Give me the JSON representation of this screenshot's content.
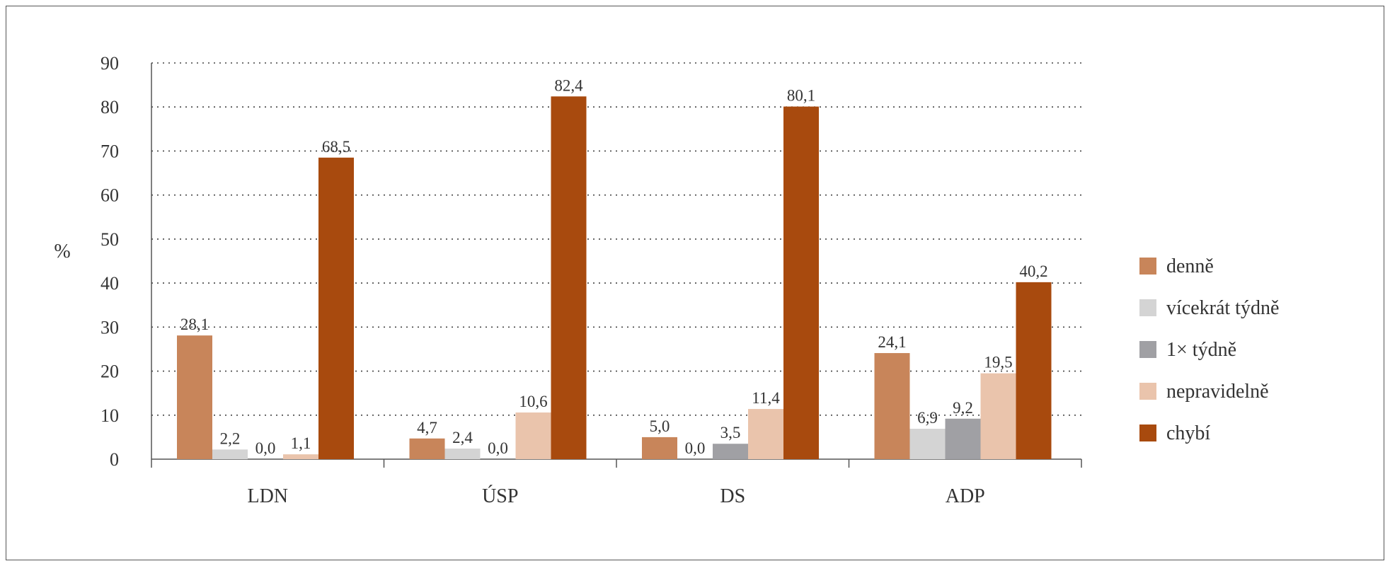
{
  "chart_data": {
    "type": "bar",
    "ylabel": "%",
    "ylim": [
      0,
      90
    ],
    "yticks": [
      0,
      10,
      20,
      30,
      40,
      50,
      60,
      70,
      80,
      90
    ],
    "grid": "dotted-horizontal",
    "legend_position": "right",
    "categories": [
      "LDN",
      "ÚSP",
      "DS",
      "ADP"
    ],
    "series": [
      {
        "name": "denně",
        "color": "#c8855a",
        "values": [
          28.1,
          4.7,
          5.0,
          24.1
        ],
        "labels": [
          "28,1",
          "4,7",
          "5,0",
          "24,1"
        ]
      },
      {
        "name": "vícekrát týdně",
        "color": "#d4d4d4",
        "values": [
          2.2,
          2.4,
          0.0,
          6.9
        ],
        "labels": [
          "2,2",
          "2,4",
          "0,0",
          "6,9"
        ]
      },
      {
        "name": "1× týdně",
        "color": "#a0a0a4",
        "values": [
          0.0,
          0.0,
          3.5,
          9.2
        ],
        "labels": [
          "0,0",
          "0,0",
          "3,5",
          "9,2"
        ]
      },
      {
        "name": "nepravidelně",
        "color": "#eac4ac",
        "values": [
          1.1,
          10.6,
          11.4,
          19.5
        ],
        "labels": [
          "1,1",
          "10,6",
          "11,4",
          "19,5"
        ]
      },
      {
        "name": "chybí",
        "color": "#a84a0e",
        "values": [
          68.5,
          82.4,
          80.1,
          40.2
        ],
        "labels": [
          "68,5",
          "82,4",
          "80,1",
          "40,2"
        ]
      }
    ]
  }
}
